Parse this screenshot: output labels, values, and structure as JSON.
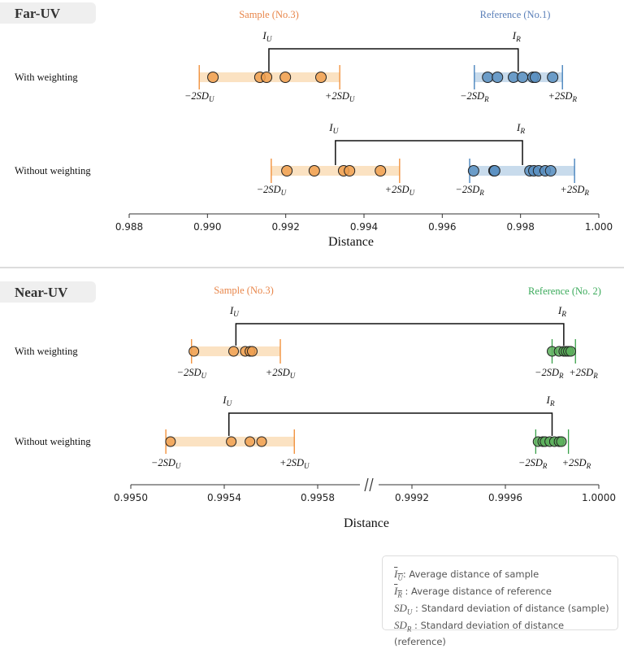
{
  "colors": {
    "sample": "#f0a050",
    "sample_band": "#fbe2c2",
    "sample_title": "#e8864a",
    "reference_blue": "#5b90c2",
    "reference_blue_band": "#c8dbec",
    "reference_blue_title": "#5a7fb8",
    "reference_green": "#5cb05c",
    "reference_green_band": "#cfe8cf",
    "reference_green_title": "#3aaa5a",
    "tick_sample": "#f08a30",
    "tick_blue": "#3a7ab8",
    "tick_green": "#3aa04a"
  },
  "labels": {
    "mean_base": "I",
    "sd_minus": "−2SD",
    "sd_plus": "+2SD",
    "sub_sample": "U",
    "sub_reference": "R"
  },
  "chart_data": [
    {
      "type": "scatter",
      "title": "Far-UV",
      "sample_label": "Sample (No.3)",
      "reference_label": "Reference (No.1)",
      "reference_color": "blue",
      "xlabel": "Distance",
      "xlim": [
        0.988,
        1.0
      ],
      "ticks": [
        "0.988",
        "0.990",
        "0.992",
        "0.994",
        "0.996",
        "0.998",
        "1.000"
      ],
      "tick_values": [
        0.988,
        0.99,
        0.992,
        0.994,
        0.996,
        0.998,
        1.0
      ],
      "rows": [
        {
          "label": "With weighting",
          "sample": {
            "values": [
              0.99014,
              0.99134,
              0.99151,
              0.99199,
              0.9929
            ],
            "mean": 0.99157,
            "minus2sd": 0.98979,
            "plus2sd": 0.99338
          },
          "reference": {
            "values": [
              0.99716,
              0.99741,
              0.99782,
              0.99805,
              0.99832,
              0.99838,
              0.99882
            ],
            "mean": 0.99794,
            "minus2sd": 0.99682,
            "plus2sd": 0.99907
          }
        },
        {
          "label": "Without weighting",
          "sample": {
            "values": [
              0.99203,
              0.99273,
              0.99348,
              0.99363,
              0.99442
            ],
            "mean": 0.99327,
            "minus2sd": 0.99163,
            "plus2sd": 0.99491
          },
          "reference": {
            "values": [
              0.9968,
              0.99732,
              0.99734,
              0.99824,
              0.99834,
              0.99846,
              0.99863,
              0.99877
            ],
            "mean": 0.99805,
            "minus2sd": 0.9967,
            "plus2sd": 0.99938
          }
        }
      ]
    },
    {
      "type": "scatter",
      "title": "Near-UV",
      "sample_label": "Sample (No.3)",
      "reference_label": "Reference (No. 2)",
      "reference_color": "green",
      "xlabel": "Distance",
      "axis_break": true,
      "xlim_left": [
        0.995,
        0.99598
      ],
      "xlim_right": [
        0.99916,
        1.0
      ],
      "ticks": [
        "0.9950",
        "0.9954",
        "0.9958",
        "0.9992",
        "0.9996",
        "1.0000"
      ],
      "tick_values": [
        0.995,
        0.9954,
        0.9958,
        0.9992,
        0.9996,
        1.0
      ],
      "rows": [
        {
          "label": "With weighting",
          "sample": {
            "values": [
              0.99527,
              0.99544,
              0.99549,
              0.99551,
              0.99552
            ],
            "mean": 0.99545,
            "minus2sd": 0.99526,
            "plus2sd": 0.99564
          },
          "reference": {
            "values": [
              0.9998,
              0.99983,
              0.99985,
              0.99986,
              0.99987,
              0.99988
            ],
            "mean": 0.99985,
            "minus2sd": 0.9998,
            "plus2sd": 0.9999
          }
        },
        {
          "label": "Without weighting",
          "sample": {
            "values": [
              0.99517,
              0.99543,
              0.99551,
              0.99556
            ],
            "mean": 0.99542,
            "minus2sd": 0.99515,
            "plus2sd": 0.9957
          },
          "reference": {
            "values": [
              0.99974,
              0.99976,
              0.99977,
              0.99979,
              0.99981,
              0.99983,
              0.99984
            ],
            "mean": 0.9998,
            "minus2sd": 0.99973,
            "plus2sd": 0.99987
          }
        }
      ]
    }
  ],
  "legend": [
    {
      "symbol": "I",
      "sub": "U",
      "overline": true,
      "text": ": Average distance of sample"
    },
    {
      "symbol": "I",
      "sub": "R",
      "overline": true,
      "text": " : Average distance of reference"
    },
    {
      "symbol": "SD",
      "sub": "U",
      "overline": false,
      "text": " : Standard deviation of distance (sample)"
    },
    {
      "symbol": "SD",
      "sub": "R",
      "overline": false,
      "text": " : Standard deviation of distance (reference)"
    }
  ]
}
